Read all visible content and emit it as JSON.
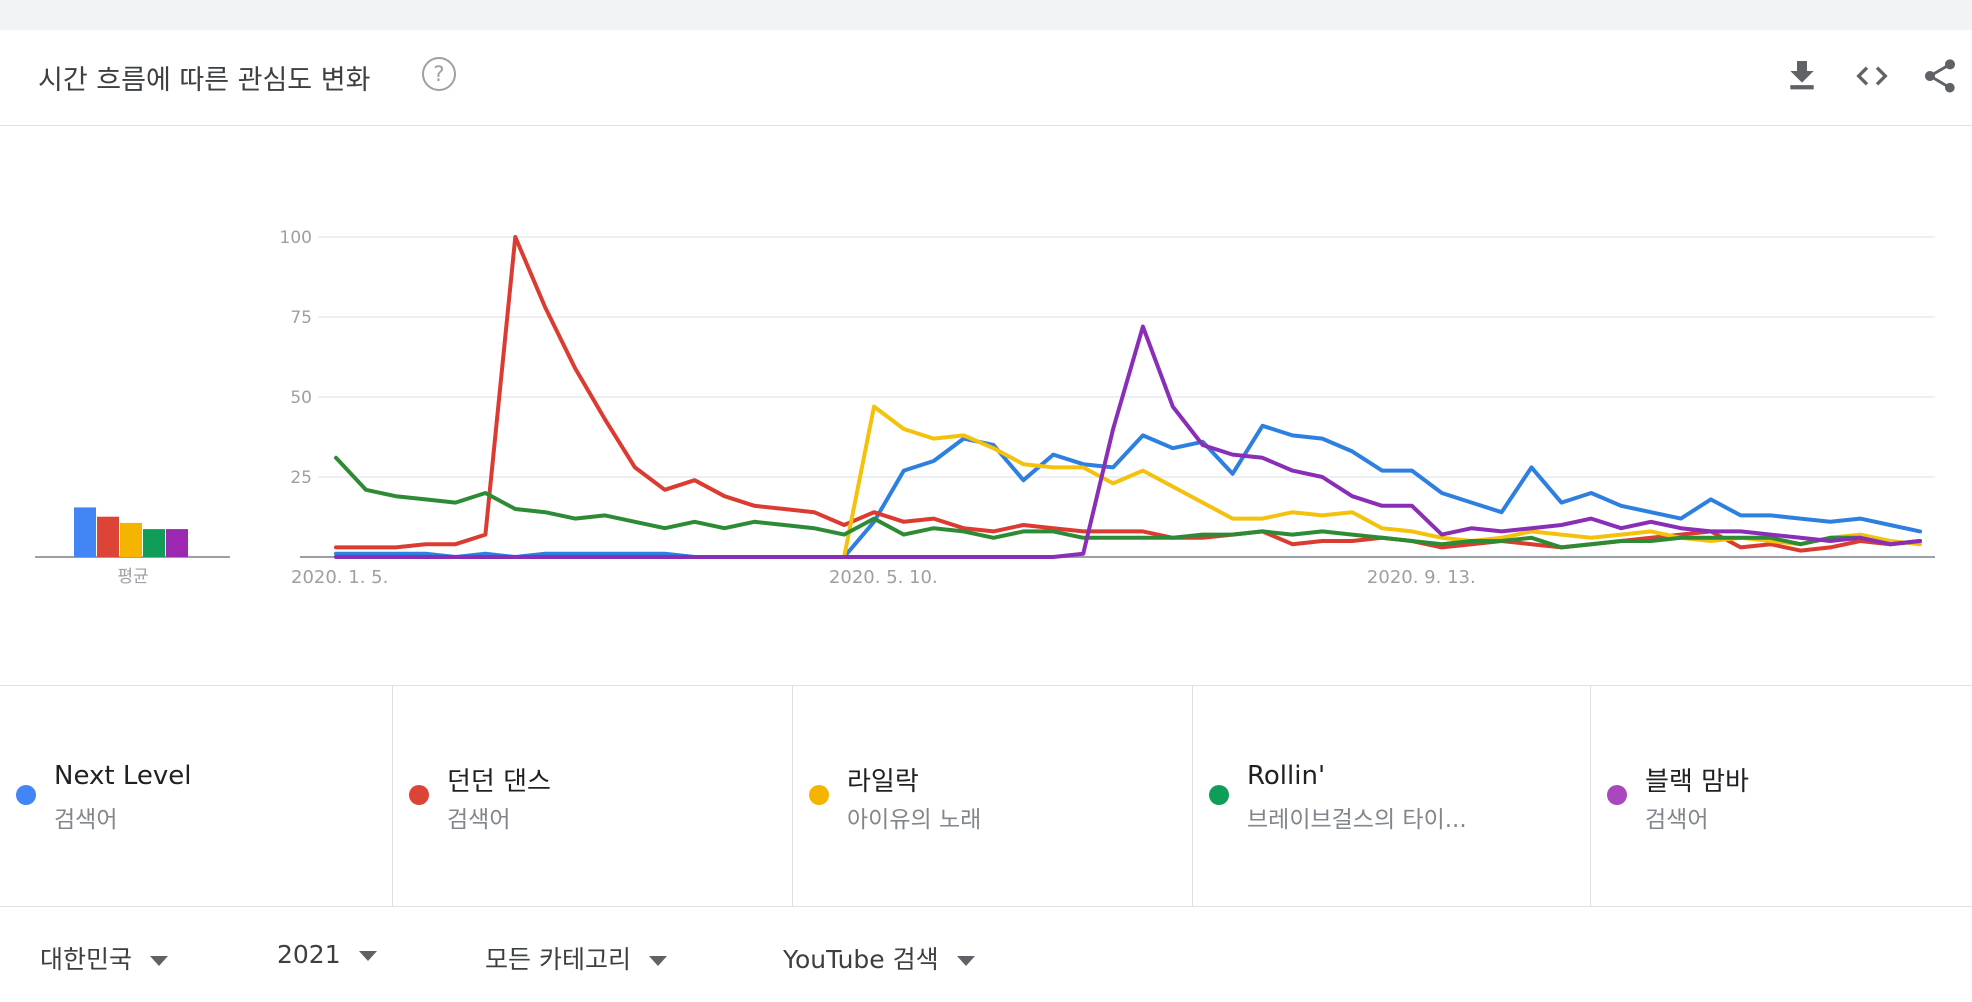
{
  "header": {
    "title": "시간 흐름에 따른 관심도 변화",
    "help_glyph": "?",
    "icons": [
      "download-icon",
      "embed-code-icon",
      "share-icon"
    ]
  },
  "average_label": "평균",
  "legend": [
    {
      "name": "Next Level",
      "sub": "검색어",
      "color": "#4285f4"
    },
    {
      "name": "던던 댄스",
      "sub": "검색어",
      "color": "#db4437"
    },
    {
      "name": "라일락",
      "sub": "아이유의 노래",
      "color": "#f4b400"
    },
    {
      "name": "Rollin'",
      "sub": "브레이브걸스의 타이...",
      "color": "#0f9d58"
    },
    {
      "name": "블랙 맘바",
      "sub": "검색어",
      "color": "#ab47bc"
    }
  ],
  "filters": {
    "region": "대한민국",
    "year": "2021",
    "category": "모든 카테고리",
    "source": "YouTube 검색"
  },
  "chart_data": {
    "type": "line",
    "y_ticks": [
      "100",
      "75",
      "50",
      "25"
    ],
    "ylim": [
      0,
      100
    ],
    "x_tick_labels": [
      "2020. 1. 5.",
      "2020. 5. 10.",
      "2020. 9. 13."
    ],
    "x_tick_indices": [
      0,
      18,
      36
    ],
    "grid": true,
    "averages": [
      16,
      13,
      11,
      9,
      9
    ],
    "series": [
      {
        "name": "Next Level",
        "color": "#2d7fe0",
        "values": [
          1,
          1,
          1,
          1,
          0,
          1,
          0,
          1,
          1,
          1,
          1,
          1,
          0,
          0,
          0,
          0,
          0,
          0,
          11,
          27,
          30,
          37,
          35,
          24,
          32,
          29,
          28,
          38,
          34,
          36,
          26,
          41,
          38,
          37,
          33,
          27,
          27,
          20,
          17,
          14,
          28,
          17,
          20,
          16,
          14,
          12,
          18,
          13,
          13,
          12,
          11,
          12,
          10,
          8
        ]
      },
      {
        "name": "던던 댄스",
        "color": "#db3b31",
        "values": [
          3,
          3,
          3,
          4,
          4,
          7,
          100,
          78,
          59,
          43,
          28,
          21,
          24,
          19,
          16,
          15,
          14,
          10,
          14,
          11,
          12,
          9,
          8,
          10,
          9,
          8,
          8,
          8,
          6,
          6,
          7,
          8,
          4,
          5,
          5,
          6,
          5,
          3,
          4,
          5,
          4,
          3,
          4,
          5,
          6,
          7,
          8,
          3,
          4,
          2,
          3,
          5,
          4,
          5
        ]
      },
      {
        "name": "라일락",
        "color": "#f4c20d",
        "values": [
          0,
          0,
          0,
          0,
          0,
          0,
          0,
          0,
          0,
          0,
          0,
          0,
          0,
          0,
          0,
          0,
          0,
          0,
          47,
          40,
          37,
          38,
          34,
          29,
          28,
          28,
          23,
          27,
          22,
          17,
          12,
          12,
          14,
          13,
          14,
          9,
          8,
          6,
          5,
          6,
          8,
          7,
          6,
          7,
          8,
          6,
          5,
          6,
          5,
          4,
          6,
          7,
          5,
          4
        ]
      },
      {
        "name": "Rollin'",
        "color": "#2e8b35",
        "values": [
          31,
          21,
          19,
          18,
          17,
          20,
          15,
          14,
          12,
          13,
          11,
          9,
          11,
          9,
          11,
          10,
          9,
          7,
          12,
          7,
          9,
          8,
          6,
          8,
          8,
          6,
          6,
          6,
          6,
          7,
          7,
          8,
          7,
          8,
          7,
          6,
          5,
          4,
          5,
          5,
          6,
          3,
          4,
          5,
          5,
          6,
          6,
          6,
          6,
          4,
          6,
          6,
          4,
          5
        ]
      },
      {
        "name": "블랙 맘바",
        "color": "#8a2eb8",
        "values": [
          0,
          0,
          0,
          0,
          0,
          0,
          0,
          0,
          0,
          0,
          0,
          0,
          0,
          0,
          0,
          0,
          0,
          0,
          0,
          0,
          0,
          0,
          0,
          0,
          0,
          1,
          40,
          72,
          47,
          35,
          32,
          31,
          27,
          25,
          19,
          16,
          16,
          7,
          9,
          8,
          9,
          10,
          12,
          9,
          11,
          9,
          8,
          8,
          7,
          6,
          5,
          6,
          4,
          5
        ]
      }
    ]
  }
}
